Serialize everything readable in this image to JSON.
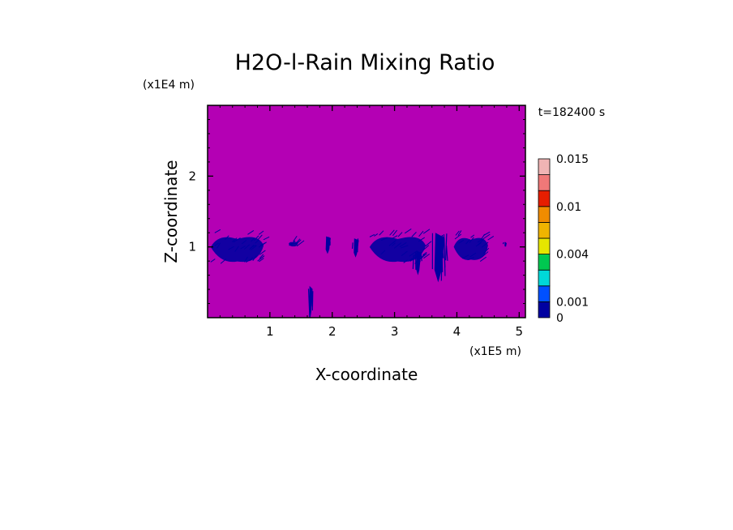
{
  "chart_data": {
    "type": "heatmap",
    "title": "H2O-l-Rain Mixing Ratio",
    "xlabel": "X-coordinate",
    "ylabel": "Z-coordinate",
    "x_unit": "(x1E5 m)",
    "y_unit": "(x1E4 m)",
    "time_label": "t=182400 s",
    "xlim": [
      0,
      5.1
    ],
    "ylim": [
      0,
      3.0
    ],
    "x_ticks": [
      "1",
      "2",
      "3",
      "4",
      "5"
    ],
    "x_tick_values": [
      1,
      2,
      3,
      4,
      5
    ],
    "y_ticks": [
      "1",
      "2"
    ],
    "y_tick_values": [
      1,
      2
    ],
    "grid": false,
    "background_color": "#b400b4",
    "colorbar": {
      "levels": [
        0,
        0.001,
        0.002,
        0.003,
        0.004,
        0.006,
        0.008,
        0.01,
        0.012,
        0.014,
        0.015
      ],
      "colors": [
        "#0000a0",
        "#0050ff",
        "#00d8d8",
        "#00c850",
        "#e6e600",
        "#f0b400",
        "#f08c00",
        "#e61e00",
        "#f07878",
        "#f0b4b4"
      ],
      "labels": [
        "0",
        "0.001",
        "0.004",
        "0.01",
        "0.015"
      ],
      "label_values": [
        0,
        0.001,
        0.004,
        0.01,
        0.015
      ]
    },
    "rain_regions": [
      {
        "x_range": [
          0.05,
          0.9
        ],
        "z_range": [
          0.75,
          1.2
        ],
        "value": 0.0005
      },
      {
        "x_range": [
          1.3,
          1.45
        ],
        "z_range": [
          1.0,
          1.08
        ],
        "value": 0.0005
      },
      {
        "x_range": [
          1.6,
          1.7
        ],
        "z_range": [
          0.0,
          0.45
        ],
        "value": 0.0005
      },
      {
        "x_range": [
          1.85,
          2.0
        ],
        "z_range": [
          0.9,
          1.15
        ],
        "value": 0.0005
      },
      {
        "x_range": [
          2.3,
          2.45
        ],
        "z_range": [
          0.85,
          1.12
        ],
        "value": 0.0005
      },
      {
        "x_range": [
          2.6,
          3.5
        ],
        "z_range": [
          0.75,
          1.2
        ],
        "value": 0.0005
      },
      {
        "x_range": [
          3.3,
          3.45
        ],
        "z_range": [
          0.6,
          0.95
        ],
        "value": 0.0005
      },
      {
        "x_range": [
          3.55,
          3.85
        ],
        "z_range": [
          0.5,
          1.2
        ],
        "value": 0.0005
      },
      {
        "x_range": [
          3.95,
          4.5
        ],
        "z_range": [
          0.78,
          1.18
        ],
        "value": 0.0005
      },
      {
        "x_range": [
          4.75,
          4.8
        ],
        "z_range": [
          1.0,
          1.07
        ],
        "value": 0.0005
      }
    ]
  }
}
